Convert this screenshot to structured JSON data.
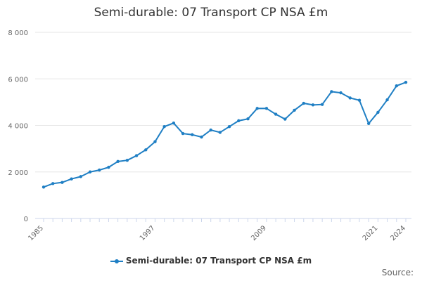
{
  "chart_data": {
    "type": "line",
    "title": "Semi-durable: 07 Transport CP NSA £m",
    "xlabel": "",
    "ylabel": "",
    "x_tick_labels": [
      "1985",
      "1997",
      "2009",
      "2021",
      "2024"
    ],
    "y_tick_labels": [
      "0",
      "2 000",
      "4 000",
      "6 000",
      "8 000"
    ],
    "y_ticks": [
      0,
      2000,
      4000,
      6000,
      8000
    ],
    "ylim": [
      0,
      8000
    ],
    "xlim": [
      1985,
      2024
    ],
    "grid": true,
    "legend_position": "bottom",
    "series": [
      {
        "name": "Semi-durable: 07 Transport CP NSA £m",
        "color": "#1f7fc4",
        "x": [
          1985,
          1986,
          1987,
          1988,
          1989,
          1990,
          1991,
          1992,
          1993,
          1994,
          1995,
          1996,
          1997,
          1998,
          1999,
          2000,
          2001,
          2002,
          2003,
          2004,
          2005,
          2006,
          2007,
          2008,
          2009,
          2010,
          2011,
          2012,
          2013,
          2014,
          2015,
          2016,
          2017,
          2018,
          2019,
          2020,
          2021,
          2022,
          2023,
          2024
        ],
        "values": [
          1350,
          1500,
          1550,
          1700,
          1800,
          2000,
          2080,
          2200,
          2450,
          2500,
          2700,
          2950,
          3300,
          3950,
          4100,
          3650,
          3600,
          3500,
          3800,
          3700,
          3950,
          4200,
          4280,
          4730,
          4730,
          4480,
          4270,
          4650,
          4950,
          4880,
          4900,
          5450,
          5400,
          5180,
          5080,
          4080,
          4560,
          5100,
          5700,
          5850
        ]
      }
    ]
  },
  "source_label": "Source:"
}
